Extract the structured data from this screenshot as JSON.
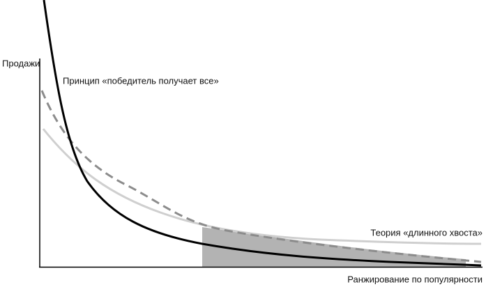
{
  "axes": {
    "y_label": "Продажи",
    "x_label": "Ранжирование по популярности"
  },
  "curves": {
    "winner": "Принцип «победитель получает все»",
    "long_tail": "Теория «длинного хвоста»"
  }
}
